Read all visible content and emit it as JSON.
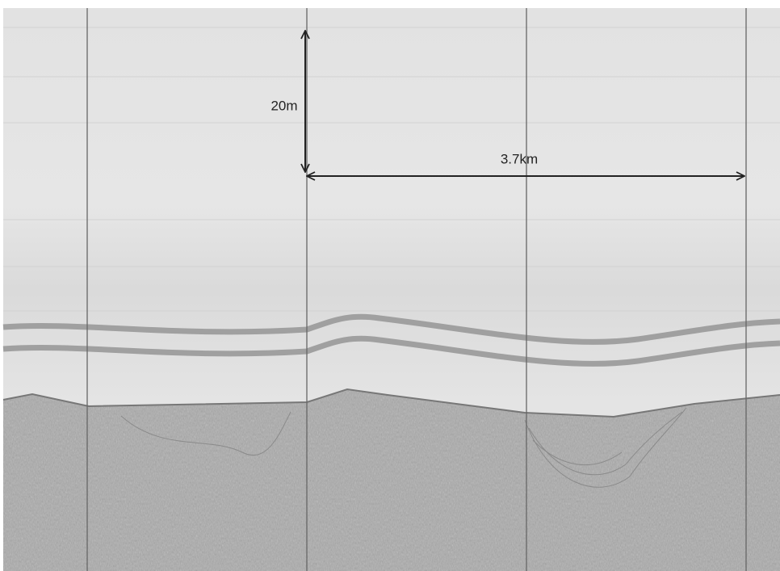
{
  "annotations": {
    "vertical_scale": "20m",
    "horizontal_scale": "3.7km"
  }
}
